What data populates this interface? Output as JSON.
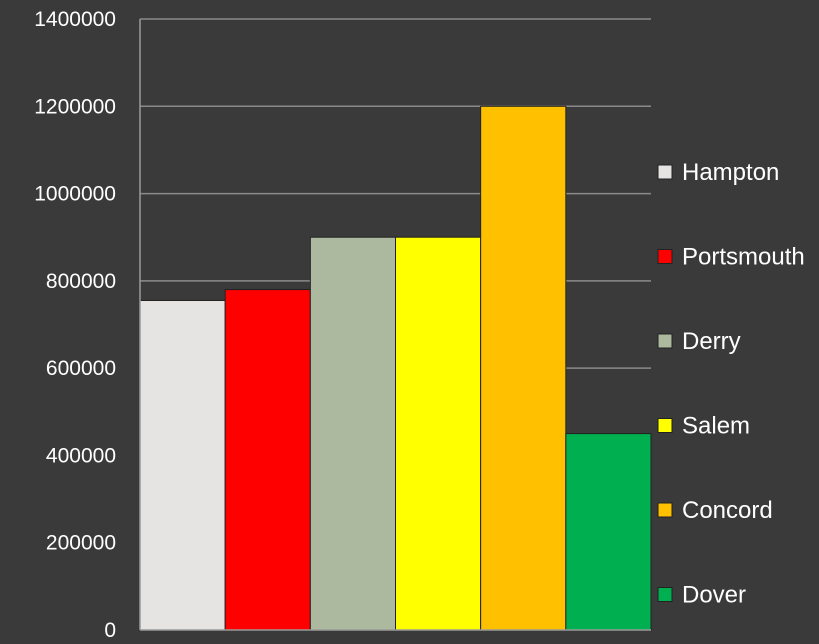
{
  "chart_data": {
    "type": "bar",
    "title": "",
    "xlabel": "",
    "ylabel": "",
    "ylim": [
      0,
      1400000
    ],
    "yticks": [
      0,
      200000,
      400000,
      600000,
      800000,
      1000000,
      1200000,
      1400000
    ],
    "ytick_labels": [
      "0",
      "200000",
      "400000",
      "600000",
      "800000",
      "1000000",
      "1200000",
      "1400000"
    ],
    "grid": true,
    "legend_position": "right",
    "series": [
      {
        "name": "Hampton",
        "value": 755000,
        "color": "#e6e4e2"
      },
      {
        "name": "Portsmouth",
        "value": 780000,
        "color": "#ff0000"
      },
      {
        "name": "Derry",
        "value": 900000,
        "color": "#adb99f"
      },
      {
        "name": "Salem",
        "value": 900000,
        "color": "#ffff00"
      },
      {
        "name": "Concord",
        "value": 1200000,
        "color": "#ffc000"
      },
      {
        "name": "Dover",
        "value": 450000,
        "color": "#00b050"
      }
    ]
  }
}
